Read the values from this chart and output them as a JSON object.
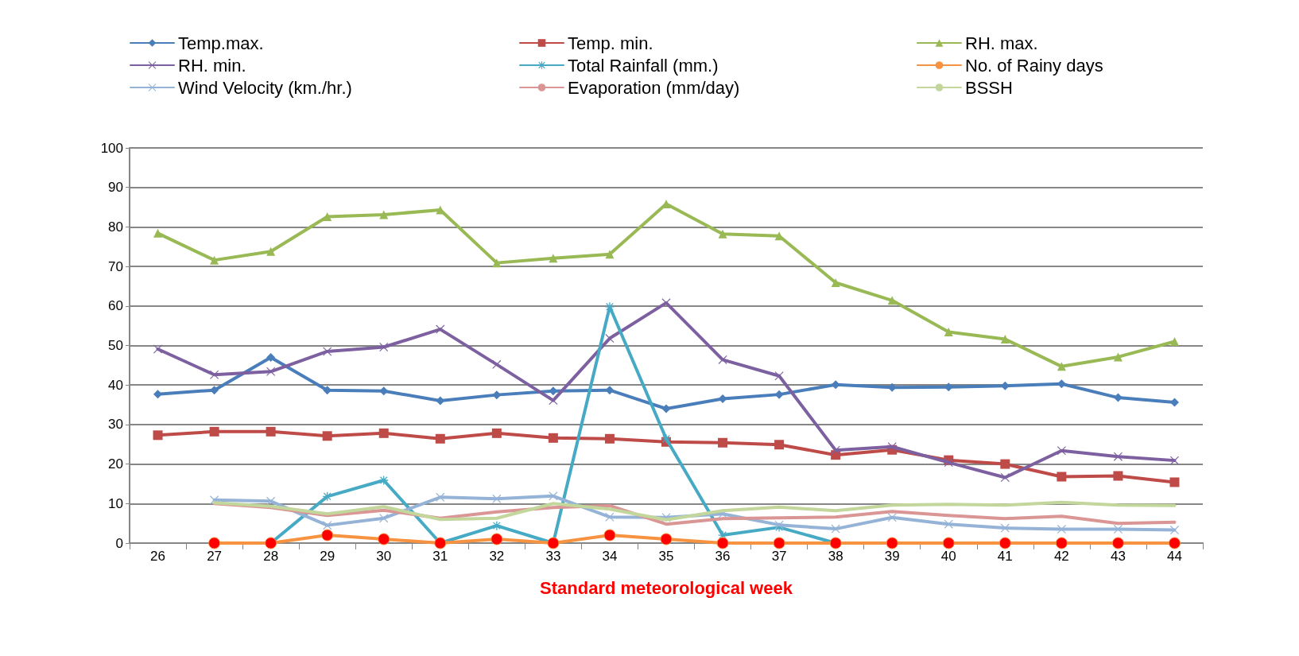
{
  "chart_data": {
    "type": "line",
    "xlabel": "Standard meteorological week",
    "categories": [
      "26",
      "27",
      "28",
      "29",
      "30",
      "31",
      "32",
      "33",
      "34",
      "35",
      "36",
      "37",
      "38",
      "39",
      "40",
      "41",
      "42",
      "43",
      "44"
    ],
    "ylim": [
      0,
      100
    ],
    "yticks": [
      0,
      10,
      20,
      30,
      40,
      50,
      60,
      70,
      80,
      90,
      100
    ],
    "grid": "y",
    "legend": "top",
    "line_style": "solid",
    "series": [
      {
        "name": "Temp.max.",
        "color": "#4a7ebb",
        "marker": "diamond",
        "values": [
          37.7,
          38.7,
          47,
          38.7,
          38.5,
          36,
          37.5,
          38.5,
          38.7,
          34,
          36.5,
          37.6,
          40.1,
          39.4,
          39.5,
          39.8,
          40.3,
          36.8,
          35.6
        ]
      },
      {
        "name": "Temp. min.",
        "color": "#be4b48",
        "marker": "square",
        "values": [
          27.3,
          28.2,
          28.2,
          27.1,
          27.8,
          26.4,
          27.8,
          26.6,
          26.4,
          25.6,
          25.4,
          24.9,
          22.3,
          23.6,
          21,
          20,
          16.8,
          17,
          15.4
        ]
      },
      {
        "name": "RH. max.",
        "color": "#98b954",
        "marker": "triangle",
        "values": [
          78.4,
          71.6,
          73.8,
          82.6,
          83.1,
          84.3,
          70.9,
          72.1,
          73.1,
          85.8,
          78.2,
          77.7,
          65.9,
          61.4,
          53.4,
          51.6,
          44.7,
          47.1,
          51
        ]
      },
      {
        "name": "RH. min.",
        "color": "#7d60a0",
        "marker": "cross",
        "values": [
          49.1,
          42.6,
          43.4,
          48.5,
          49.6,
          54.1,
          45.2,
          36.1,
          51.8,
          60.8,
          46.4,
          42.3,
          23.5,
          24.4,
          20.4,
          16.6,
          23.4,
          21.9,
          20.9
        ]
      },
      {
        "name": "Total Rainfall (mm.)",
        "color": "#46aac5",
        "marker": "star",
        "values": [
          null,
          0,
          0,
          11.8,
          15.9,
          0,
          4.4,
          0,
          59.8,
          26.4,
          2,
          4,
          0,
          0,
          null,
          null,
          null,
          null,
          null
        ]
      },
      {
        "name": "No. of Rainy days",
        "color": "#f69240",
        "marker": "circle",
        "colors": [
          "#ff0000",
          "#ff0000",
          "#ff0000",
          "#ff0000",
          "#ff0000",
          "#ff0000",
          "#ff0000",
          "#ff0000",
          "#ff0000",
          "#ff0000",
          "#ff0000",
          "#ff0000",
          "#ff0000",
          "#ff0000",
          "#ff0000",
          "#ff0000",
          "#ff0000",
          "#ff0000",
          "#ff0000"
        ],
        "values": [
          null,
          0,
          0,
          2,
          1,
          0,
          1,
          0,
          2,
          1,
          0,
          0,
          0,
          0,
          0,
          0,
          0,
          0,
          0
        ]
      },
      {
        "name": "Wind Velocity (km./hr.)",
        "color": "#95b3d7",
        "marker": "cross",
        "values": [
          null,
          10.9,
          10.6,
          4.5,
          6.3,
          11.6,
          11.2,
          11.9,
          6.6,
          6.5,
          7.4,
          4.6,
          3.6,
          6.5,
          4.8,
          3.8,
          3.5,
          3.5,
          3.3
        ]
      },
      {
        "name": "Evaporation (mm/day)",
        "color": "#d99694",
        "marker": "none",
        "values": [
          null,
          10,
          9,
          7,
          8.3,
          6.3,
          7.9,
          9,
          9.5,
          4.8,
          6.2,
          6.4,
          6.6,
          8,
          7,
          6.2,
          6.8,
          5,
          5.3
        ]
      },
      {
        "name": "BSSH",
        "color": "#c3d69b",
        "marker": "none",
        "values": [
          null,
          10.2,
          9.3,
          7.4,
          9.2,
          6,
          6.3,
          10,
          8.6,
          5.9,
          8.2,
          9.1,
          8.2,
          9.6,
          9.8,
          9.6,
          10.3,
          9.6,
          9.5
        ]
      }
    ]
  }
}
